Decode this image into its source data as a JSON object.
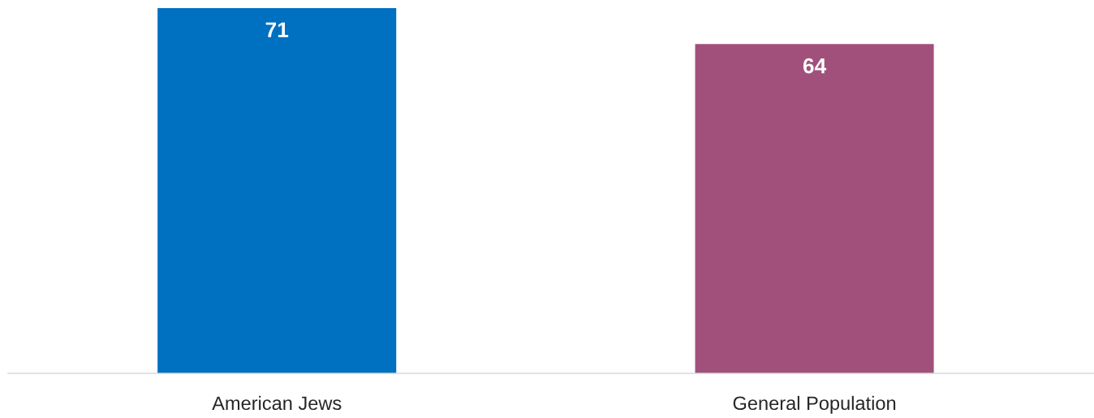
{
  "chart_data": {
    "type": "bar",
    "categories": [
      "American Jews",
      "General Population"
    ],
    "values": [
      71,
      64
    ],
    "colors": [
      "#0070c0",
      "#a1507b"
    ],
    "data_labels": true,
    "grid": false,
    "legend": false
  }
}
